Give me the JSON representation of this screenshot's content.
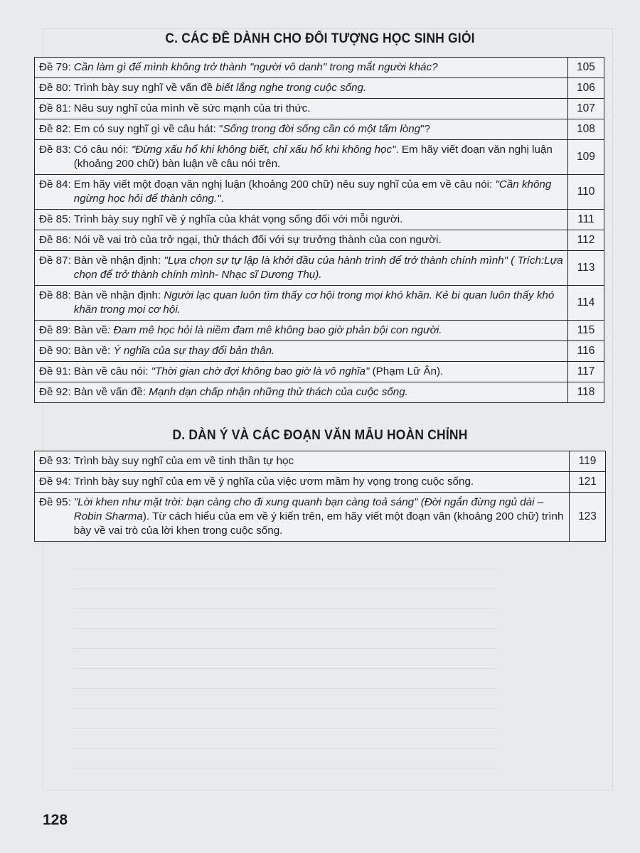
{
  "sections": [
    {
      "title": "C. CÁC ĐỀ DÀNH CHO ĐỐI TƯỢNG HỌC SINH GIỎI",
      "rows": [
        {
          "label": "Đề 79:",
          "parts": [
            {
              "text": "Cần làm gì để mình không trở thành \"người vô danh\" trong mắt người khác?",
              "italic": true
            }
          ],
          "page": "105"
        },
        {
          "label": "Đề 80:",
          "parts": [
            {
              "text": "Trình bày suy nghĩ về vấn đề ",
              "italic": false
            },
            {
              "text": "biết lắng nghe trong cuộc sống.",
              "italic": true
            }
          ],
          "page": "106"
        },
        {
          "label": "Đề 81:",
          "parts": [
            {
              "text": "Nêu suy nghĩ của mình về sức mạnh của tri thức.",
              "italic": false
            }
          ],
          "page": "107"
        },
        {
          "label": "Đề 82:",
          "parts": [
            {
              "text": "Em có suy nghĩ gì về câu hát: \"",
              "italic": false
            },
            {
              "text": "Sống trong đời sống cần có một tấm lòng",
              "italic": true
            },
            {
              "text": "\"?",
              "italic": false
            }
          ],
          "page": "108"
        },
        {
          "label": "Đề 83:",
          "parts": [
            {
              "text": "Có câu nói: ",
              "italic": false
            },
            {
              "text": "\"Đừng xấu hổ khi không biết, chỉ xấu hổ khi không học\"",
              "italic": true
            },
            {
              "text": ". Em hãy viết đoạn văn nghị luận (khoảng 200 chữ) bàn luận về câu nói trên.",
              "italic": false
            }
          ],
          "page": "109"
        },
        {
          "label": "Đề 84:",
          "parts": [
            {
              "text": "Em hãy viết một đoạn văn nghị luận (khoảng 200 chữ) nêu suy nghĩ của em về câu nói: ",
              "italic": false
            },
            {
              "text": "\"Cần không ngừng học hỏi để thành công.\"",
              "italic": true
            },
            {
              "text": ".",
              "italic": false
            }
          ],
          "page": "110"
        },
        {
          "label": "Đề 85:",
          "parts": [
            {
              "text": "Trình bày suy nghĩ về ý nghĩa của khát vọng sống đối với mỗi người.",
              "italic": false
            }
          ],
          "page": "111"
        },
        {
          "label": "Đề 86:",
          "parts": [
            {
              "text": "Nói về vai trò của trở ngại, thử thách đối với sự trưởng thành của con người.",
              "italic": false
            }
          ],
          "page": "112"
        },
        {
          "label": "Đề 87:",
          "parts": [
            {
              "text": "Bàn về nhận định: ",
              "italic": false
            },
            {
              "text": "\"Lựa chọn sự tự lập là khởi đầu của hành trình để trở thành chính mình\" ( Trích:Lựa chọn để trở thành chính mình- Nhạc sĩ Dương Thụ).",
              "italic": true
            }
          ],
          "page": "113"
        },
        {
          "label": "Đề 88:",
          "parts": [
            {
              "text": "Bàn về nhận định: ",
              "italic": false
            },
            {
              "text": "Người lạc quan luôn tìm thấy cơ hội trong mọi khó khăn. Kẻ bi quan luôn thấy khó khăn trong mọi cơ hội.",
              "italic": true
            }
          ],
          "page": "114"
        },
        {
          "label": "Đề 89:",
          "parts": [
            {
              "text": "Bàn về",
              "italic": false
            },
            {
              "text": ": Đam mê học hỏi là niềm đam mê không bao giờ phản bội con người.",
              "italic": true
            }
          ],
          "page": "115"
        },
        {
          "label": "Đề 90:",
          "parts": [
            {
              "text": "Bàn về: ",
              "italic": false
            },
            {
              "text": "Ý nghĩa của sự thay đổi bản thân.",
              "italic": true
            }
          ],
          "page": "116"
        },
        {
          "label": "Đề 91:",
          "parts": [
            {
              "text": "Bàn về câu nói: ",
              "italic": false
            },
            {
              "text": "\"Thời gian chờ đợi không bao giờ là vô nghĩa\"",
              "italic": true
            },
            {
              "text": " (Phạm Lữ Ân).",
              "italic": false
            }
          ],
          "page": "117"
        },
        {
          "label": "Đề 92:",
          "parts": [
            {
              "text": "Bàn về vấn đề: ",
              "italic": false
            },
            {
              "text": "Mạnh dạn chấp nhận những thử thách của cuộc sống.",
              "italic": true
            }
          ],
          "page": "118"
        }
      ]
    },
    {
      "title": "D. DÀN Ý VÀ CÁC ĐOẠN VĂN MẪU HOÀN CHỈNH",
      "rows": [
        {
          "label": "Đề 93:",
          "parts": [
            {
              "text": "Trình bày suy nghĩ của em về tinh thần tự học",
              "italic": false
            }
          ],
          "page": "119"
        },
        {
          "label": "Đề 94:",
          "parts": [
            {
              "text": "Trình bày suy nghĩ của em về ý nghĩa của việc ươm mầm hy vọng trong cuộc sống.",
              "italic": false
            }
          ],
          "page": "121"
        },
        {
          "label": "Đề 95:",
          "parts": [
            {
              "text": "\"Lời khen như mặt trời: bạn càng cho đi xung quanh bạn càng toả sáng\" (Đời ngắn đừng ngủ dài – Robin Sharma",
              "italic": true
            },
            {
              "text": "). Từ cách hiểu của em về ý kiến trên, em hãy viết một đoạn văn (khoảng 200 chữ) trình bày về vai trò của lời khen trong cuộc sống.",
              "italic": false
            }
          ],
          "page": "123"
        }
      ]
    }
  ],
  "page_number": "128"
}
